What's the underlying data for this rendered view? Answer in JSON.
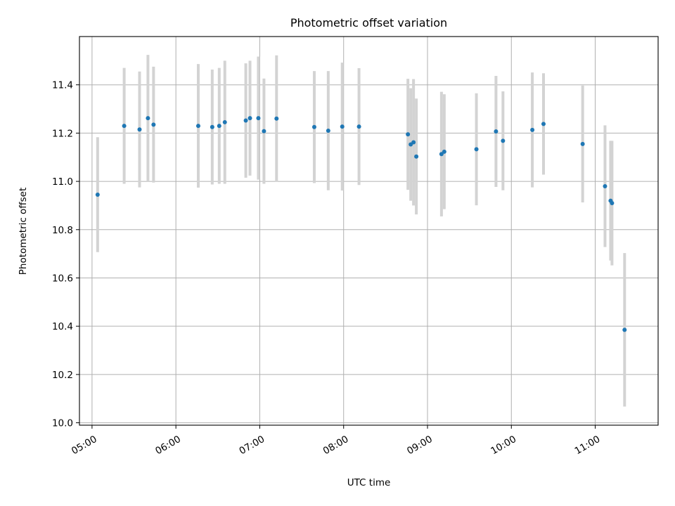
{
  "chart_data": {
    "type": "scatter",
    "title": "Photometric offset variation",
    "xlabel": "UTC time",
    "ylabel": "Photometric offset",
    "x_ticks": [
      "05:00",
      "06:00",
      "07:00",
      "08:00",
      "09:00",
      "10:00",
      "11:00"
    ],
    "y_ticks": [
      "10.0",
      "10.2",
      "10.4",
      "10.6",
      "10.8",
      "11.0",
      "11.2",
      "11.4"
    ],
    "xlim": [
      "04:51",
      "11:45"
    ],
    "ylim": [
      9.99,
      11.6
    ],
    "grid": true,
    "colors": {
      "point": "#1f77b4",
      "errorbar": "#d3d3d3",
      "grid": "#b0b0b0"
    },
    "series": [
      {
        "points": [
          {
            "x": "05:04",
            "y": 10.945,
            "err": 0.238
          },
          {
            "x": "05:23",
            "y": 11.23,
            "err": 0.24
          },
          {
            "x": "05:34",
            "y": 11.215,
            "err": 0.24
          },
          {
            "x": "05:40",
            "y": 11.262,
            "err": 0.262
          },
          {
            "x": "05:44",
            "y": 11.235,
            "err": 0.24
          },
          {
            "x": "06:16",
            "y": 11.23,
            "err": 0.256
          },
          {
            "x": "06:26",
            "y": 11.225,
            "err": 0.238
          },
          {
            "x": "06:31",
            "y": 11.23,
            "err": 0.24
          },
          {
            "x": "06:35",
            "y": 11.245,
            "err": 0.255
          },
          {
            "x": "06:50",
            "y": 11.252,
            "err": 0.237
          },
          {
            "x": "06:53",
            "y": 11.262,
            "err": 0.238
          },
          {
            "x": "06:59",
            "y": 11.262,
            "err": 0.255
          },
          {
            "x": "07:03",
            "y": 11.208,
            "err": 0.218
          },
          {
            "x": "07:12",
            "y": 11.26,
            "err": 0.262
          },
          {
            "x": "07:39",
            "y": 11.225,
            "err": 0.232
          },
          {
            "x": "07:49",
            "y": 11.21,
            "err": 0.247
          },
          {
            "x": "07:59",
            "y": 11.227,
            "err": 0.265
          },
          {
            "x": "08:11",
            "y": 11.227,
            "err": 0.242
          },
          {
            "x": "08:46",
            "y": 11.195,
            "err": 0.23
          },
          {
            "x": "08:48",
            "y": 11.153,
            "err": 0.233
          },
          {
            "x": "08:50",
            "y": 11.162,
            "err": 0.262
          },
          {
            "x": "08:52",
            "y": 11.103,
            "err": 0.24
          },
          {
            "x": "09:10",
            "y": 11.113,
            "err": 0.258
          },
          {
            "x": "09:12",
            "y": 11.123,
            "err": 0.238
          },
          {
            "x": "09:35",
            "y": 11.133,
            "err": 0.232
          },
          {
            "x": "09:49",
            "y": 11.207,
            "err": 0.23
          },
          {
            "x": "09:54",
            "y": 11.168,
            "err": 0.205
          },
          {
            "x": "10:15",
            "y": 11.213,
            "err": 0.238
          },
          {
            "x": "10:23",
            "y": 11.238,
            "err": 0.21
          },
          {
            "x": "10:51",
            "y": 11.155,
            "err": 0.242
          },
          {
            "x": "11:07",
            "y": 10.98,
            "err": 0.252
          },
          {
            "x": "11:11",
            "y": 10.92,
            "err": 0.248
          },
          {
            "x": "11:12",
            "y": 10.91,
            "err": 0.258
          },
          {
            "x": "11:21",
            "y": 10.385,
            "err": 0.318
          }
        ]
      }
    ]
  }
}
